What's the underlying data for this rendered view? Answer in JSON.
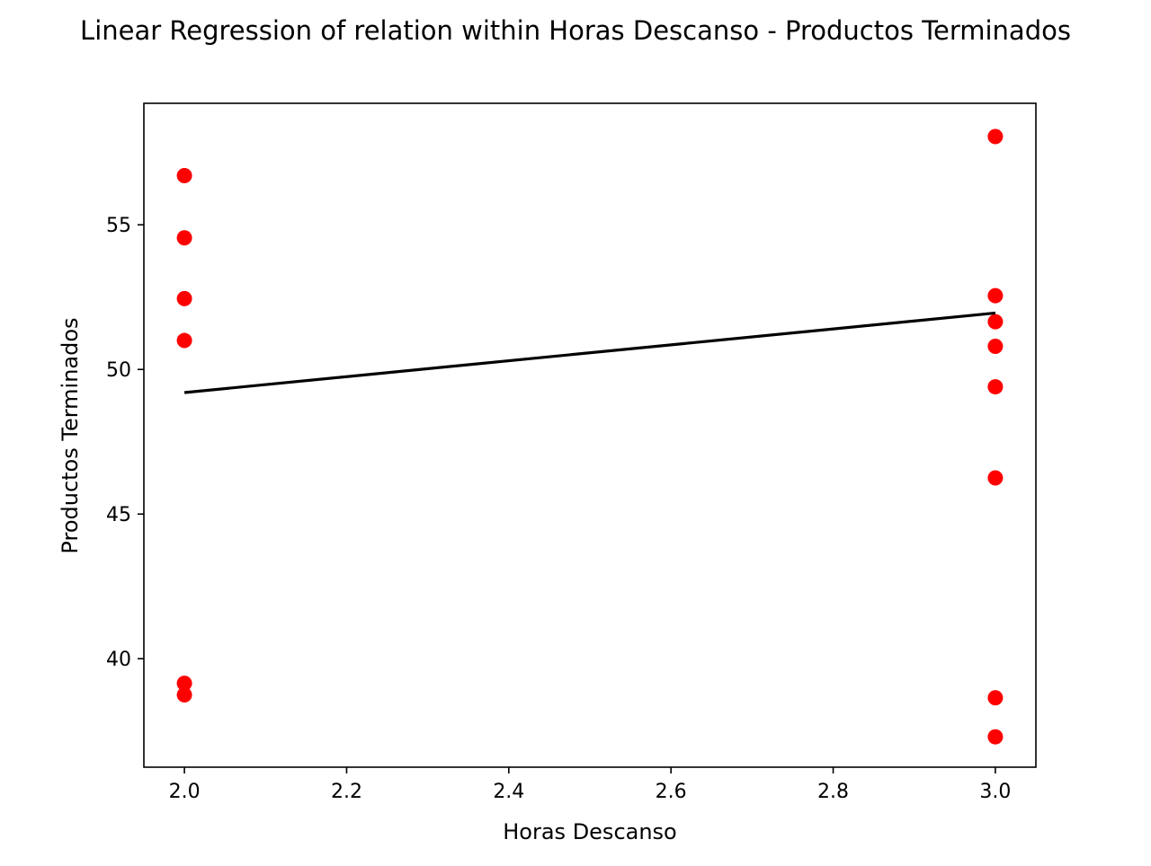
{
  "chart_data": {
    "type": "scatter",
    "title": "Linear Regression of relation within Horas Descanso - Productos Terminados",
    "xlabel": "Horas Descanso",
    "ylabel": "Productos Terminados",
    "xlim": [
      1.95,
      3.05
    ],
    "ylim": [
      36.25,
      59.2
    ],
    "xticks": [
      2.0,
      2.2,
      2.4,
      2.6,
      2.8,
      3.0
    ],
    "xtick_labels": [
      "2.0",
      "2.2",
      "2.4",
      "2.6",
      "2.8",
      "3.0"
    ],
    "yticks": [
      40,
      45,
      50,
      55
    ],
    "ytick_labels": [
      "40",
      "45",
      "50",
      "55"
    ],
    "grid": false,
    "series": [
      {
        "kind": "points",
        "color": "#ff0000",
        "x": [
          2,
          2,
          2,
          2,
          2,
          2,
          3,
          3,
          3,
          3,
          3,
          3,
          3,
          3
        ],
        "y": [
          56.7,
          54.55,
          52.45,
          51.0,
          39.15,
          38.75,
          58.05,
          52.55,
          51.65,
          50.8,
          49.4,
          46.25,
          38.65,
          37.3
        ]
      },
      {
        "kind": "line",
        "color": "#000000",
        "x": [
          2,
          3
        ],
        "y": [
          49.2,
          51.95
        ]
      }
    ]
  }
}
